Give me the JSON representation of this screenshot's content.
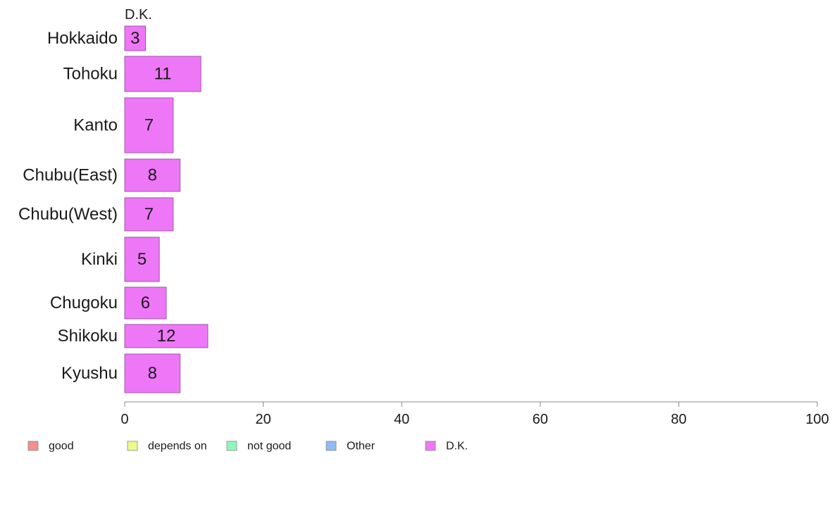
{
  "chart_data": {
    "type": "bar",
    "orientation": "horizontal",
    "categories": [
      "Hokkaido",
      "Tohoku",
      "Kanto",
      "Chubu(East)",
      "Chubu(West)",
      "Kinki",
      "Chugoku",
      "Shikoku",
      "Kyushu"
    ],
    "series": [
      {
        "name": "D.K.",
        "values": [
          3,
          11,
          7,
          8,
          7,
          5,
          6,
          12,
          8
        ],
        "color": "#ee77f7"
      }
    ],
    "series_header": "D.K.",
    "xlim": [
      0,
      100
    ],
    "xticks": [
      "0",
      "20",
      "40",
      "60",
      "80",
      "100"
    ],
    "grid": false,
    "legend": {
      "placement": "bottom",
      "items": [
        {
          "label": "good",
          "color": "#f48f8f"
        },
        {
          "label": "depends on",
          "color": "#ecf98f"
        },
        {
          "label": "not good",
          "color": "#8ff7bd"
        },
        {
          "label": "Other",
          "color": "#8fbaf7"
        },
        {
          "label": "D.K.",
          "color": "#ee77f7"
        }
      ]
    },
    "bar_edge_color": "#9a5aa6",
    "axis_color": "#888888"
  }
}
